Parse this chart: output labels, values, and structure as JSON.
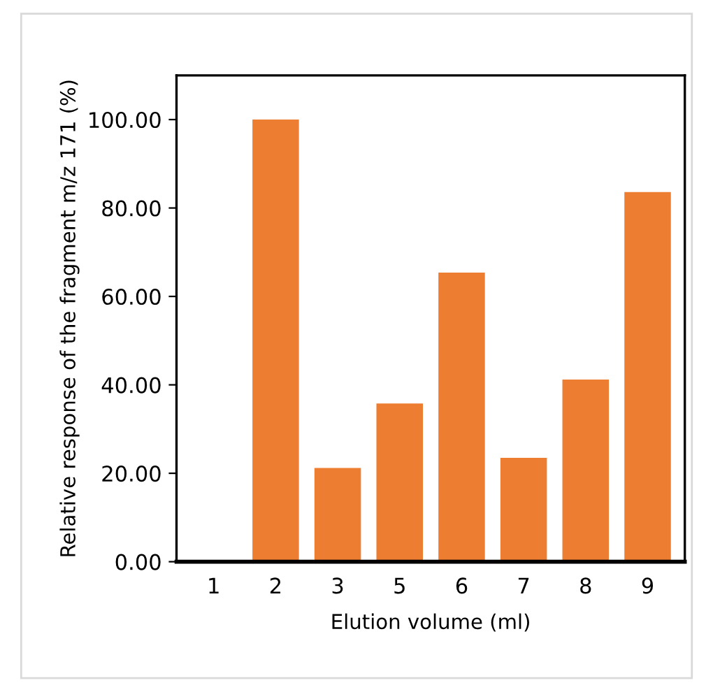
{
  "chart_data": {
    "type": "bar",
    "xlabel": "Elution volume (ml)",
    "ylabel": "Relative response of the fragment m/z 171 (%)",
    "categories": [
      "1",
      "2",
      "3",
      "5",
      "6",
      "7",
      "8",
      "9"
    ],
    "values": [
      0,
      100,
      21.2,
      35.8,
      65.4,
      23.5,
      41.2,
      83.6
    ],
    "color": "#ed7d31",
    "ylim": [
      0,
      110
    ],
    "yticks": [
      {
        "value": 0,
        "label": "0.00"
      },
      {
        "value": 20,
        "label": "20.00"
      },
      {
        "value": 40,
        "label": "40.00"
      },
      {
        "value": 60,
        "label": "60.00"
      },
      {
        "value": 80,
        "label": "80.00"
      },
      {
        "value": 100,
        "label": "100.00"
      }
    ],
    "grid": false
  }
}
